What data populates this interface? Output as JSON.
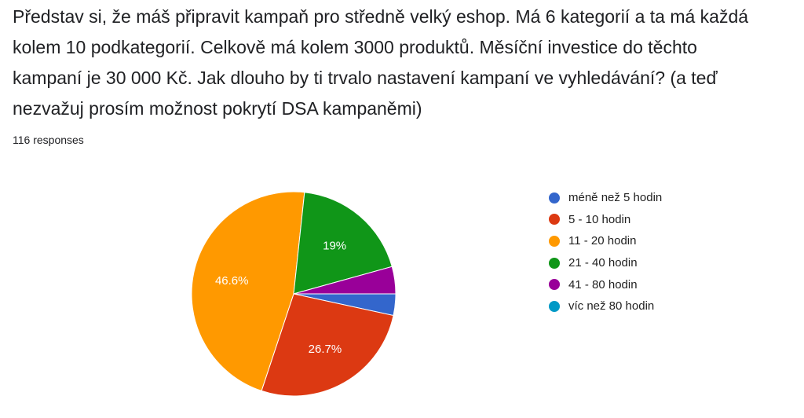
{
  "question": {
    "lines": [
      "Představ si, že máš připravit kampaň pro středně velký eshop. Má 6 kategorií a ta má každá",
      "kolem 10 podkategorií. Celkově má kolem 3000 produktů. Měsíční investice do těchto",
      "kampaní je 30 000 Kč. Jak dlouho by ti trvalo nastavení kampaní ve vyhledávání? (a teď",
      "nezvažuj prosím možnost pokrytí DSA kampaněmi)"
    ]
  },
  "responses_label": "116 responses",
  "chart_data": {
    "type": "pie",
    "categories": [
      "méně než 5 hodin",
      "5 - 10 hodin",
      "11 - 20 hodin",
      "21 - 40 hodin",
      "41 - 80 hodin",
      "víc než 80 hodin"
    ],
    "values": [
      3.4,
      26.7,
      46.6,
      19.0,
      4.3,
      0
    ],
    "data_labels": [
      "",
      "26.7%",
      "46.6%",
      "19%",
      "",
      ""
    ],
    "colors": [
      "#3366cc",
      "#dc3912",
      "#ff9900",
      "#109618",
      "#990099",
      "#0099c6"
    ],
    "legend_position": "right"
  }
}
